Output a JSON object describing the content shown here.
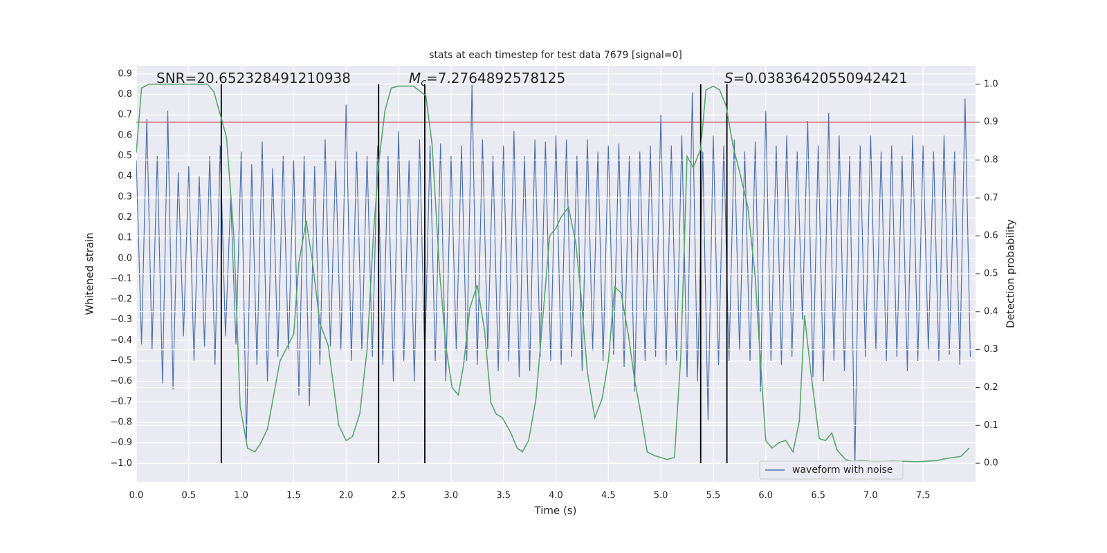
{
  "chart_data": {
    "type": "line",
    "title": "stats at each timestep for test data 7679 [signal=0]",
    "xlabel": "Time (s)",
    "ylabel": "Whitened strain",
    "y2label": "Detection probability",
    "annotations": [
      {
        "text": "SNR=20.652328491210938"
      },
      {
        "symbol": "M",
        "sub": "c",
        "rest": "=7.2764892578125"
      },
      {
        "symbol": "S",
        "rest": "=0.03836420550942421"
      }
    ],
    "xlim": [
      0,
      8.0
    ],
    "ylim": [
      -1.09,
      0.94
    ],
    "y2lim": [
      -0.049,
      1.049
    ],
    "xticks": [
      {
        "value": 0,
        "label": "0.0"
      },
      0.5,
      {
        "value": 1,
        "label": "1.0"
      },
      1.5,
      {
        "value": 2,
        "label": "2.0"
      },
      2.5,
      {
        "value": 3,
        "label": "3.0"
      },
      3.5,
      {
        "value": 4,
        "label": "4.0"
      },
      4.5,
      {
        "value": 5,
        "label": "5.0"
      },
      5.5,
      {
        "value": 6,
        "label": "6.0"
      },
      6.5,
      {
        "value": 7,
        "label": "7.0"
      },
      7.5
    ],
    "yticks": [
      0.9,
      0.8,
      0.7,
      0.6,
      0.5,
      0.4,
      0.3,
      0.2,
      0.1,
      {
        "value": 0,
        "label": "0.0"
      },
      {
        "value": -0.1,
        "label": "−0.1"
      },
      {
        "value": -0.2,
        "label": "−0.2"
      },
      {
        "value": -0.3,
        "label": "−0.3"
      },
      {
        "value": -0.4,
        "label": "−0.4"
      },
      {
        "value": -0.5,
        "label": "−0.5"
      },
      {
        "value": -0.6,
        "label": "−0.6"
      },
      {
        "value": -0.7,
        "label": "−0.7"
      },
      {
        "value": -0.8,
        "label": "−0.8"
      },
      {
        "value": -0.9,
        "label": "−0.9"
      },
      {
        "value": -1,
        "label": "−1.0"
      }
    ],
    "y2ticks": [
      {
        "value": 1,
        "label": "1.0"
      },
      0.9,
      0.8,
      0.7,
      0.6,
      0.5,
      0.4,
      0.3,
      0.2,
      0.1,
      {
        "value": 0,
        "label": "0.0"
      }
    ],
    "grid": true,
    "legend": "lower right",
    "series": [
      {
        "name": "waveform with noise",
        "color": "#4c72b0",
        "axis": "y",
        "x": [
          0,
          0.05,
          0.1,
          0.15,
          0.2,
          0.25,
          0.3,
          0.35,
          0.4,
          0.45,
          0.5,
          0.55,
          0.6,
          0.65,
          0.7,
          0.75,
          0.8,
          0.85,
          0.9,
          0.95,
          1,
          1.05,
          1.1,
          1.15,
          1.2,
          1.25,
          1.3,
          1.35,
          1.4,
          1.45,
          1.5,
          1.55,
          1.6,
          1.65,
          1.7,
          1.75,
          1.8,
          1.85,
          1.9,
          1.95,
          2,
          2.05,
          2.1,
          2.15,
          2.2,
          2.25,
          2.3,
          2.35,
          2.4,
          2.45,
          2.5,
          2.55,
          2.6,
          2.65,
          2.7,
          2.75,
          2.8,
          2.85,
          2.9,
          2.95,
          3,
          3.05,
          3.1,
          3.15,
          3.2,
          3.25,
          3.3,
          3.35,
          3.4,
          3.45,
          3.5,
          3.55,
          3.6,
          3.65,
          3.7,
          3.75,
          3.8,
          3.85,
          3.9,
          3.95,
          4,
          4.05,
          4.1,
          4.15,
          4.2,
          4.25,
          4.3,
          4.35,
          4.4,
          4.45,
          4.5,
          4.55,
          4.6,
          4.65,
          4.7,
          4.75,
          4.8,
          4.85,
          4.9,
          4.95,
          5,
          5.05,
          5.1,
          5.15,
          5.2,
          5.25,
          5.3,
          5.35,
          5.4,
          5.45,
          5.5,
          5.55,
          5.6,
          5.65,
          5.7,
          5.75,
          5.8,
          5.85,
          5.9,
          5.95,
          6,
          6.05,
          6.1,
          6.15,
          6.2,
          6.25,
          6.3,
          6.35,
          6.4,
          6.45,
          6.5,
          6.55,
          6.6,
          6.65,
          6.7,
          6.75,
          6.8,
          6.85,
          6.9,
          6.95,
          7,
          7.05,
          7.1,
          7.15,
          7.2,
          7.25,
          7.3,
          7.35,
          7.4,
          7.45,
          7.5,
          7.55,
          7.6,
          7.65,
          7.7,
          7.75,
          7.8,
          7.85,
          7.9,
          7.95
        ],
        "values": [
          0.48,
          -0.42,
          0.68,
          -0.45,
          0.5,
          -0.61,
          0.72,
          -0.64,
          0.42,
          -0.38,
          0.45,
          -0.5,
          0.4,
          -0.43,
          0.5,
          -0.52,
          0.55,
          -0.38,
          0.3,
          -0.42,
          0.52,
          -0.89,
          0.46,
          -0.52,
          0.57,
          -0.6,
          0.44,
          -0.48,
          0.5,
          -0.45,
          0.48,
          -0.67,
          0.5,
          -0.72,
          0.45,
          -0.52,
          0.58,
          -0.43,
          0.48,
          -0.45,
          0.75,
          -0.5,
          0.52,
          -0.45,
          0.5,
          -0.48,
          0.55,
          -0.52,
          0.5,
          -0.6,
          0.62,
          -0.5,
          0.48,
          -0.6,
          0.58,
          -0.5,
          0.55,
          -0.5,
          0.56,
          -0.6,
          0.5,
          -0.45,
          0.55,
          -0.5,
          0.85,
          -0.52,
          0.58,
          -0.45,
          0.5,
          -0.55,
          0.55,
          -0.5,
          0.62,
          -0.58,
          0.5,
          -0.55,
          0.58,
          -0.48,
          0.57,
          -0.5,
          0.6,
          -0.52,
          0.58,
          -0.48,
          0.5,
          -0.55,
          0.58,
          -0.45,
          0.52,
          -0.5,
          0.55,
          -0.47,
          0.56,
          -0.53,
          0.5,
          -0.65,
          0.52,
          -0.5,
          0.55,
          -0.48,
          0.7,
          -0.52,
          0.55,
          -0.5,
          0.6,
          -0.58,
          0.81,
          -0.6,
          0.52,
          -0.79,
          0.6,
          -0.52,
          0.55,
          -0.5,
          0.58,
          -0.45,
          0.52,
          -0.5,
          0.57,
          -0.65,
          0.72,
          -0.5,
          0.55,
          -0.52,
          0.6,
          -0.48,
          0.52,
          -0.3,
          0.67,
          -0.58,
          0.55,
          -0.6,
          0.71,
          -0.5,
          0.6,
          -0.55,
          0.5,
          -1.02,
          0.55,
          -0.48,
          0.6,
          -0.45,
          0.52,
          -0.5,
          0.55,
          -0.48,
          0.5,
          -0.55,
          0.6,
          -0.5,
          0.55,
          -0.45,
          0.52,
          -0.5,
          0.6,
          -0.47,
          0.52,
          -0.52,
          0.78,
          -0.48
        ]
      },
      {
        "color": "#55a868",
        "axis": "y2",
        "x": [
          0,
          0.05,
          0.12,
          0.42,
          0.68,
          0.74,
          0.81,
          0.86,
          0.93,
          0.99,
          1.06,
          1.13,
          1.18,
          1.25,
          1.37,
          1.5,
          1.55,
          1.62,
          1.68,
          1.75,
          1.83,
          1.93,
          2,
          2.06,
          2.13,
          2.2,
          2.26,
          2.31,
          2.37,
          2.43,
          2.5,
          2.64,
          2.69,
          2.76,
          2.82,
          2.89,
          2.95,
          3.01,
          3.07,
          3.12,
          3.18,
          3.25,
          3.32,
          3.38,
          3.43,
          3.49,
          3.57,
          3.63,
          3.68,
          3.74,
          3.81,
          3.88,
          3.94,
          4,
          4.05,
          4.12,
          4.19,
          4.24,
          4.3,
          4.37,
          4.44,
          4.5,
          4.56,
          4.62,
          4.69,
          4.75,
          4.81,
          4.87,
          4.94,
          5,
          5.06,
          5.13,
          5.19,
          5.25,
          5.31,
          5.38,
          5.43,
          5.5,
          5.56,
          5.62,
          5.69,
          5.75,
          5.83,
          5.9,
          5.94,
          6,
          6.06,
          6.13,
          6.19,
          6.26,
          6.32,
          6.37,
          6.43,
          6.51,
          6.57,
          6.63,
          6.68,
          6.76,
          6.82,
          6.92,
          7.06,
          7.21,
          7.44,
          7.63,
          7.73,
          7.86,
          7.94
        ],
        "values": [
          0.82,
          0.99,
          1.0,
          1.0,
          1.0,
          0.98,
          0.91,
          0.86,
          0.6,
          0.15,
          0.04,
          0.03,
          0.05,
          0.09,
          0.27,
          0.34,
          0.53,
          0.64,
          0.53,
          0.37,
          0.31,
          0.1,
          0.06,
          0.07,
          0.13,
          0.3,
          0.6,
          0.79,
          0.93,
          0.99,
          0.995,
          0.995,
          0.985,
          0.97,
          0.84,
          0.51,
          0.31,
          0.2,
          0.18,
          0.26,
          0.41,
          0.47,
          0.35,
          0.16,
          0.13,
          0.12,
          0.08,
          0.04,
          0.03,
          0.06,
          0.17,
          0.4,
          0.6,
          0.62,
          0.65,
          0.675,
          0.58,
          0.44,
          0.24,
          0.12,
          0.17,
          0.27,
          0.465,
          0.45,
          0.34,
          0.22,
          0.13,
          0.03,
          0.02,
          0.015,
          0.01,
          0.015,
          0.28,
          0.81,
          0.78,
          0.83,
          0.985,
          0.995,
          0.985,
          0.945,
          0.835,
          0.77,
          0.675,
          0.49,
          0.31,
          0.06,
          0.04,
          0.055,
          0.06,
          0.03,
          0.11,
          0.39,
          0.24,
          0.065,
          0.06,
          0.08,
          0.035,
          0.01,
          0.005,
          0.007,
          0.004,
          0.006,
          0.004,
          0.007,
          0.013,
          0.018,
          0.04
        ]
      }
    ],
    "hlines": [
      {
        "y": 0.9,
        "axis": "y2",
        "color": "#c44e52"
      }
    ],
    "vlines": {
      "x": [
        0.81,
        2.31,
        2.75,
        5.38,
        5.63
      ],
      "ymin": 0,
      "ymax": 1,
      "axis": "y2",
      "color": "#000000"
    }
  }
}
